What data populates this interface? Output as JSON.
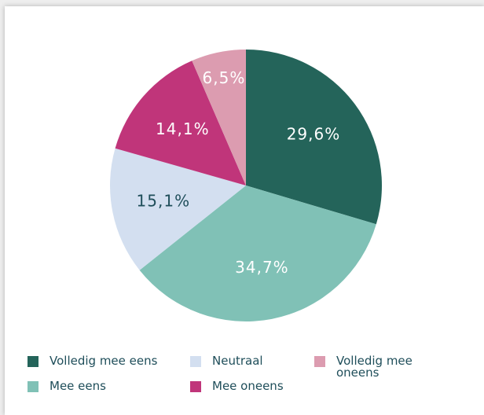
{
  "chart_data": {
    "type": "pie",
    "categories": [
      "Volledig mee eens",
      "Mee eens",
      "Neutraal",
      "Mee oneens",
      "Volledig mee oneens"
    ],
    "values": [
      29.6,
      34.7,
      15.1,
      14.1,
      6.5
    ],
    "value_labels": [
      "29,6%",
      "34,7%",
      "15,1%",
      "14,1%",
      "6,5%"
    ],
    "colors": [
      "#24645a",
      "#80c1b6",
      "#d3dff0",
      "#c0357a",
      "#dc9cb0"
    ],
    "label_colors": [
      "#ffffff",
      "#ffffff",
      "#1f4e5a",
      "#ffffff",
      "#ffffff"
    ],
    "legend": "bottom"
  }
}
